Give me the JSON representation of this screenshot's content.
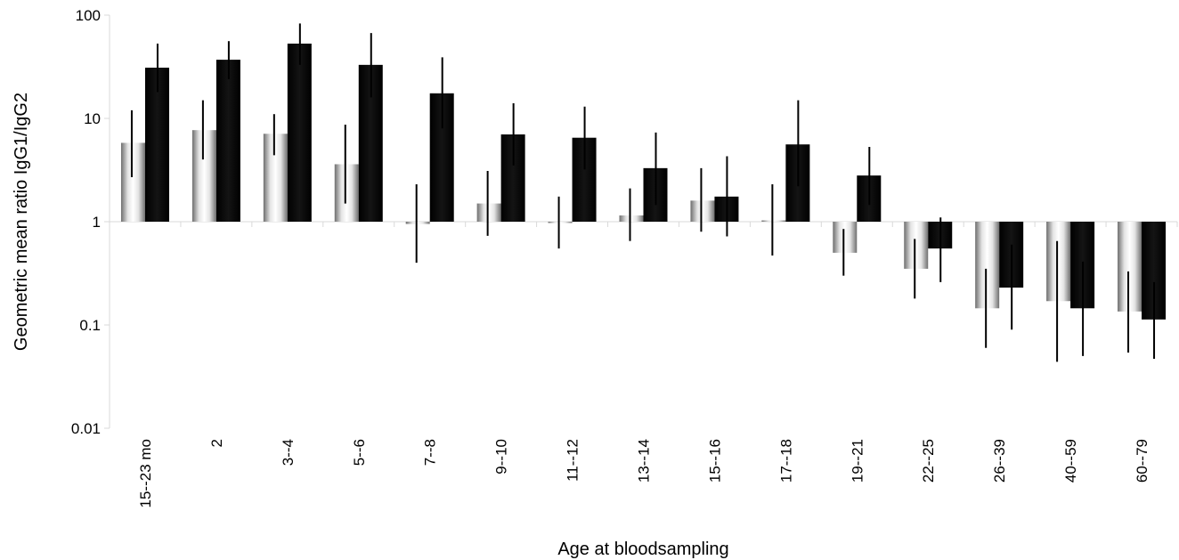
{
  "chart_data": {
    "type": "bar",
    "scale": "log",
    "xlabel": "Age at bloodsampling",
    "ylabel": "Geometric mean ratio IgG1/IgG2",
    "ylim": [
      0.01,
      100
    ],
    "yticks": [
      "0.01",
      "0.1",
      "1",
      "10",
      "100"
    ],
    "grid": false,
    "baseline": 1,
    "categories": [
      "15--23 mo",
      "2",
      "3--4",
      "5--6",
      "7--8",
      "9--10",
      "11--12",
      "13--14",
      "15--16",
      "17--18",
      "19--21",
      "22--25",
      "26--39",
      "40--59",
      "60--79"
    ],
    "series": [
      {
        "fill": "gradient-white",
        "color": "#ffffff",
        "values": [
          5.8,
          7.7,
          7.1,
          3.6,
          0.95,
          1.5,
          0.98,
          1.15,
          1.6,
          1.03,
          0.5,
          0.35,
          0.145,
          0.17,
          0.135
        ],
        "error_low": [
          2.7,
          4.0,
          4.4,
          1.5,
          0.4,
          0.73,
          0.55,
          0.65,
          0.8,
          0.47,
          0.3,
          0.18,
          0.06,
          0.044,
          0.054
        ],
        "error_high": [
          12.0,
          15.0,
          11.0,
          8.7,
          2.3,
          3.1,
          1.75,
          2.1,
          3.3,
          2.3,
          0.85,
          0.68,
          0.35,
          0.65,
          0.33
        ]
      },
      {
        "fill": "gradient-black",
        "color": "#000000",
        "values": [
          31,
          37,
          53,
          33,
          17.5,
          7.0,
          6.5,
          3.3,
          1.75,
          5.6,
          2.8,
          0.55,
          0.23,
          0.145,
          0.113
        ],
        "error_low": [
          18,
          24,
          33,
          16,
          8,
          3.5,
          3.2,
          1.45,
          0.72,
          2.2,
          1.45,
          0.26,
          0.09,
          0.05,
          0.047
        ],
        "error_high": [
          53,
          56,
          83,
          67,
          39,
          14,
          13,
          7.3,
          4.3,
          15,
          5.3,
          1.1,
          0.6,
          0.41,
          0.26
        ]
      }
    ]
  }
}
